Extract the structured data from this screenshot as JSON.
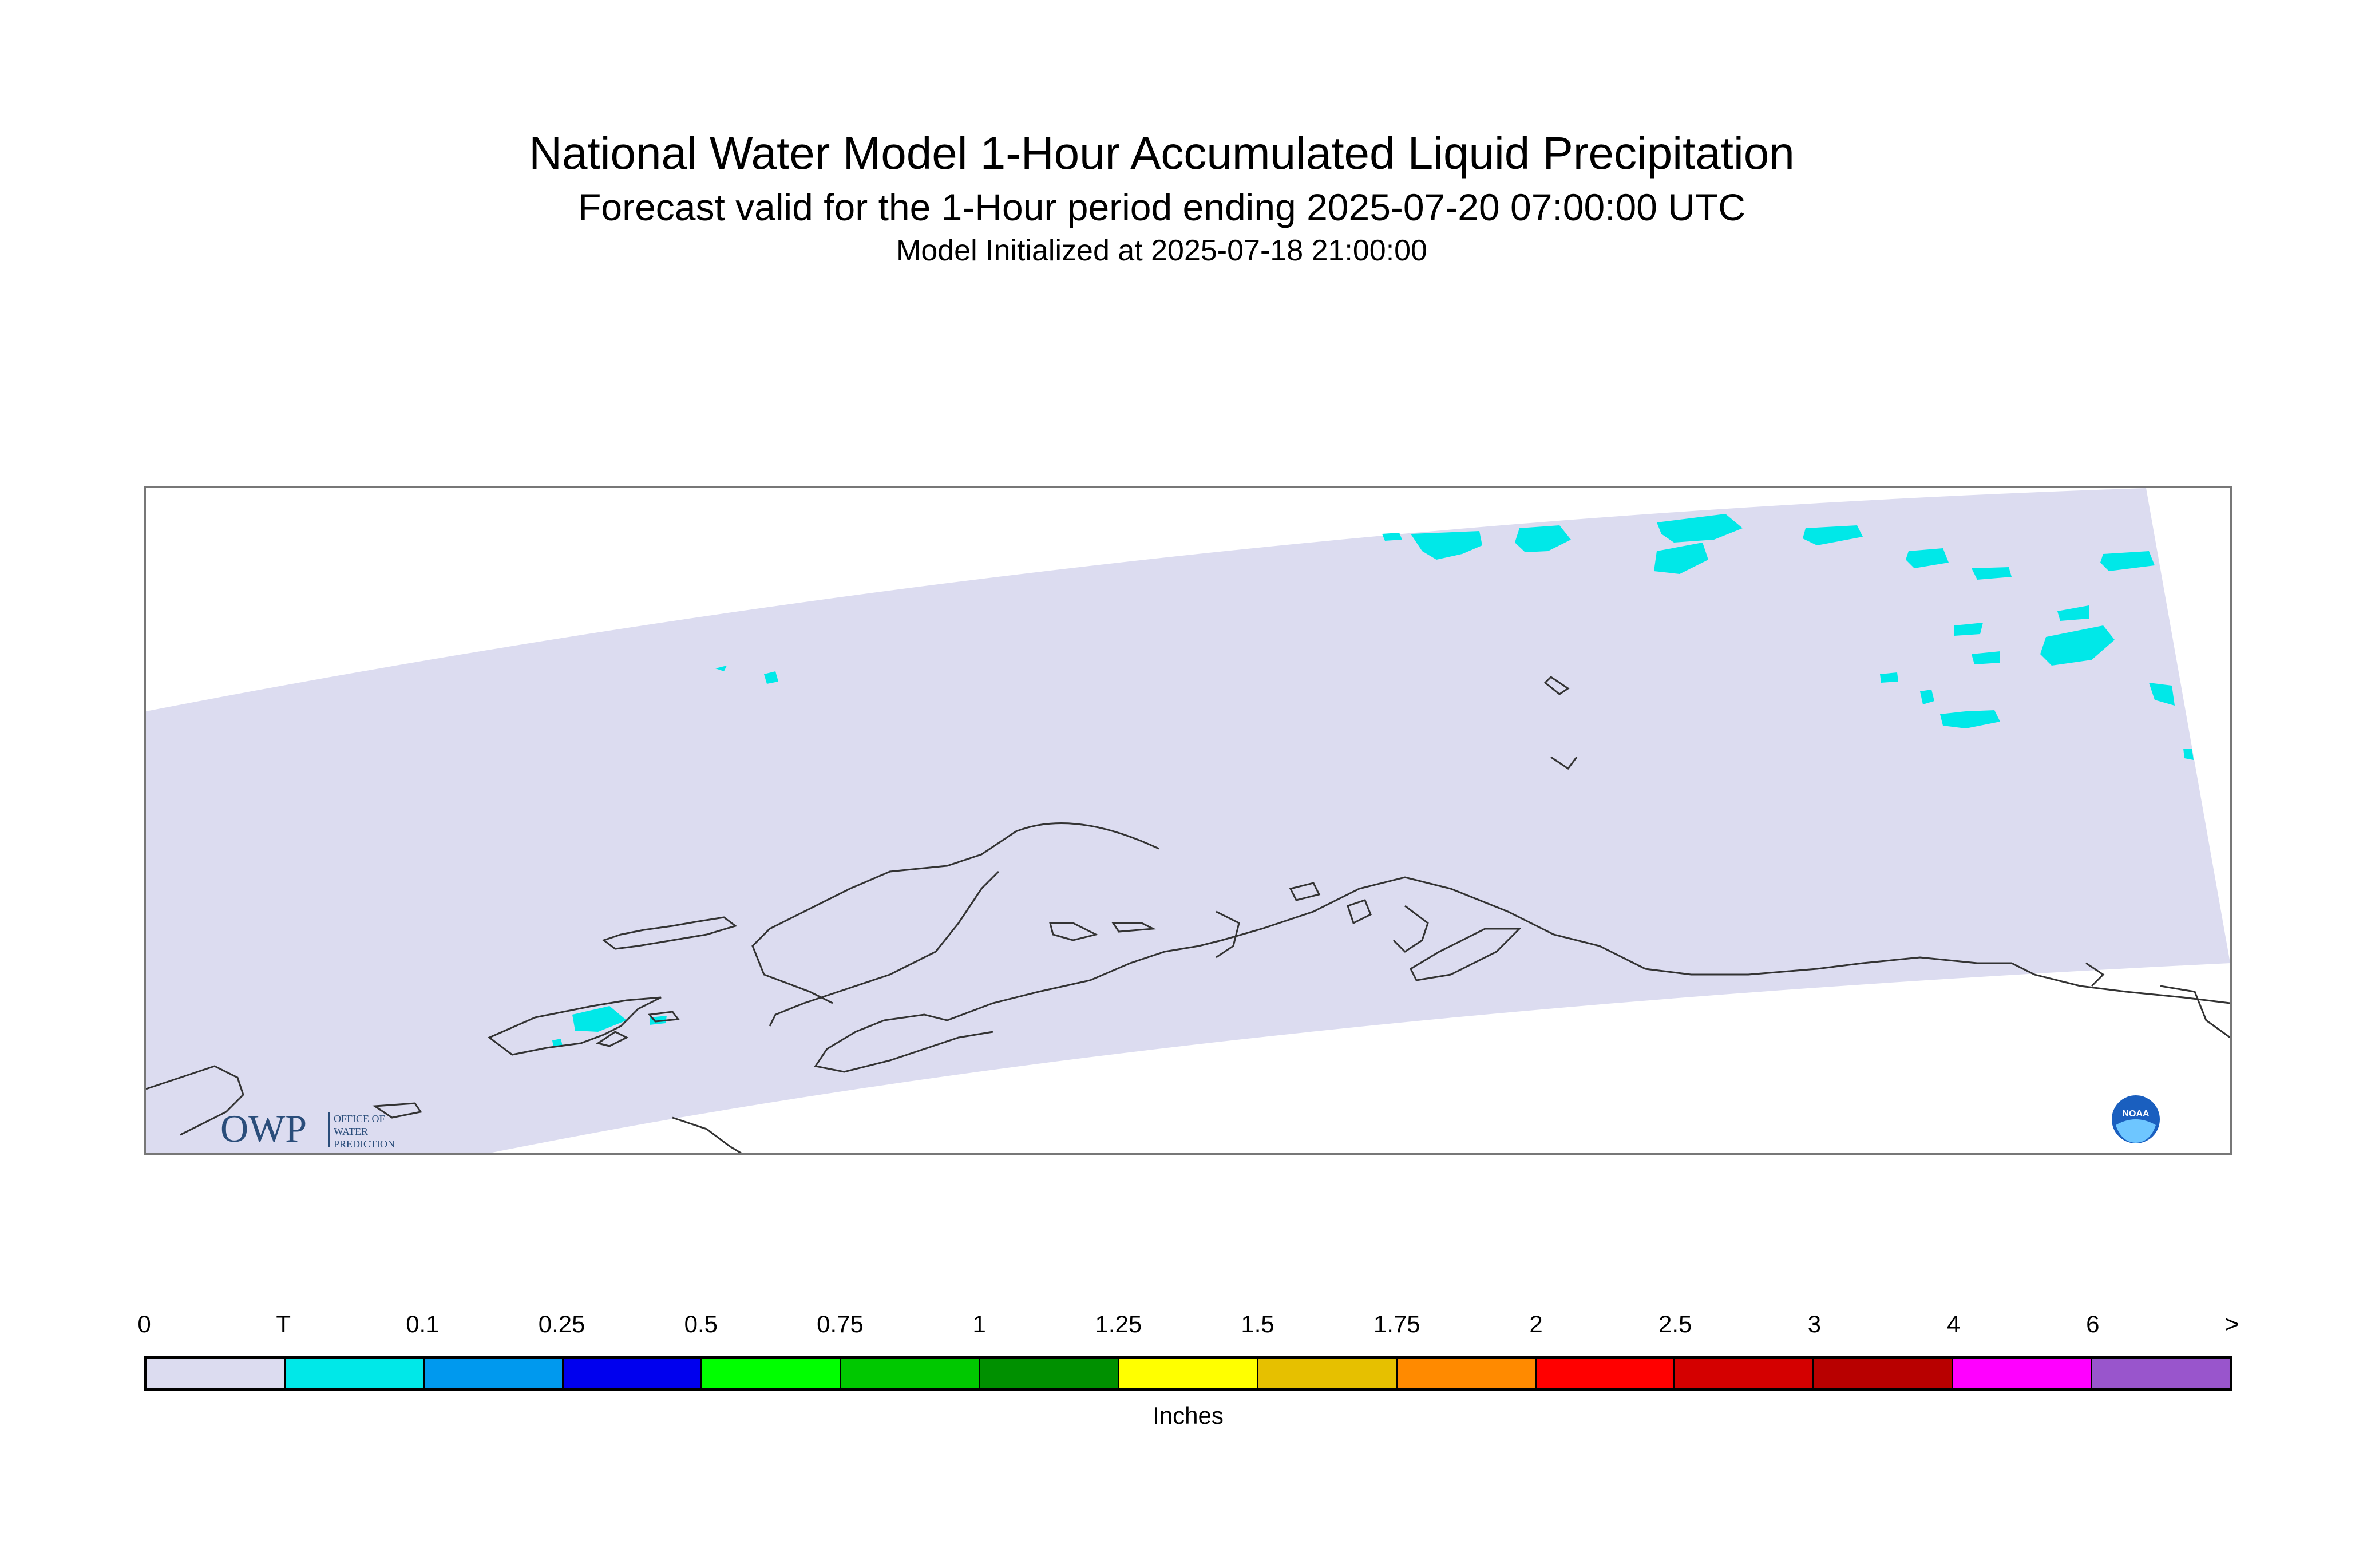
{
  "header": {
    "title": "National Water Model 1-Hour Accumulated Liquid Precipitation",
    "subtitle": "Forecast valid for the 1-Hour period ending 2025-07-20 07:00:00 UTC",
    "init": "Model Initialized at 2025-07-18 21:00:00"
  },
  "logos": {
    "owp_mark": "OWP",
    "owp_text": [
      "OFFICE OF",
      "WATER",
      "PREDICTION"
    ],
    "noaa_text": "NOAA"
  },
  "legend": {
    "ticks": [
      "0",
      "T",
      "0.1",
      "0.25",
      "0.5",
      "0.75",
      "1",
      "1.25",
      "1.5",
      "1.75",
      "2",
      "2.5",
      "3",
      "4",
      "6",
      ">"
    ],
    "colors": [
      "#dcdcf0",
      "#00e8e8",
      "#0099ee",
      "#0000ee",
      "#00ff00",
      "#00c800",
      "#009000",
      "#ffff00",
      "#e6c000",
      "#ff8a00",
      "#ff0000",
      "#d40000",
      "#b80000",
      "#ff00ff",
      "#9955cc"
    ],
    "units": "Inches"
  },
  "map": {
    "domain_color": "#dcdcf0",
    "precip_color": "#00e8e8",
    "coast_color": "#333333"
  }
}
